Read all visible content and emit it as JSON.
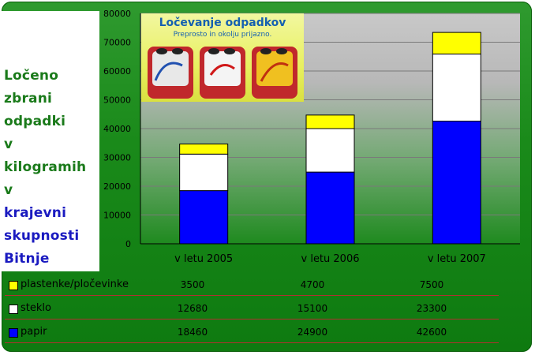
{
  "side_title": {
    "words": [
      "Ločeno",
      "zbrani",
      "odpadki",
      "v",
      "kilogramih",
      "v",
      "krajevni",
      "skupnosti",
      "Bitnje"
    ],
    "colors": [
      "#1a7a1a",
      "#1a7a1a",
      "#1a7a1a",
      "#1a7a1a",
      "#1a7a1a",
      "#1a7a1a",
      "#1a1ac0",
      "#1a1ac0",
      "#1a1ac0"
    ]
  },
  "photo": {
    "title": "Ločevanje odpadkov",
    "subtitle": "Preprosto in okolju prijazno."
  },
  "chart_data": {
    "type": "bar",
    "stacked": true,
    "categories": [
      "v letu 2005",
      "v letu 2006",
      "v letu 2007"
    ],
    "series": [
      {
        "name": "papir",
        "color": "#0000ff",
        "values": [
          18460,
          24900,
          42600
        ]
      },
      {
        "name": "steklo",
        "color": "#ffffff",
        "values": [
          12680,
          15100,
          23300
        ]
      },
      {
        "name": "plastenke/pločevinke",
        "color": "#ffff00",
        "values": [
          3500,
          4700,
          7500
        ]
      }
    ],
    "ylim": [
      0,
      80000
    ],
    "yticks": [
      0,
      10000,
      20000,
      30000,
      40000,
      50000,
      60000,
      70000,
      80000
    ],
    "grid": true,
    "legend": "data-table"
  },
  "table": {
    "rows": [
      {
        "label": "plastenke/pločevinke",
        "color": "#ffff00",
        "values": [
          "3500",
          "4700",
          "7500"
        ]
      },
      {
        "label": "steklo",
        "color": "#ffffff",
        "values": [
          "12680",
          "15100",
          "23300"
        ]
      },
      {
        "label": "papir",
        "color": "#0000ff",
        "values": [
          "18460",
          "24900",
          "42600"
        ]
      }
    ]
  }
}
